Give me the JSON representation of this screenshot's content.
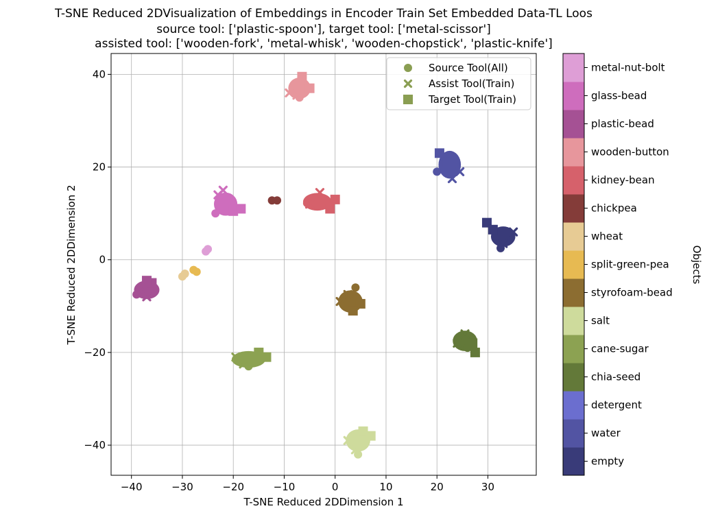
{
  "chart_data": {
    "type": "scatter",
    "title_lines": [
      "T-SNE Reduced 2DVisualization of Embeddings in Encoder Train Set Embedded Data-TL Loos",
      "source tool: ['plastic-spoon'], target tool: ['metal-scissor']",
      "assisted tool: ['wooden-fork', 'metal-whisk', 'wooden-chopstick', 'plastic-knife']"
    ],
    "xlabel": "T-SNE Reduced 2DDimension 1",
    "ylabel": "T-SNE Reduced 2DDimension 2",
    "xlim": [
      -44,
      39.5
    ],
    "ylim": [
      -46.5,
      44.5
    ],
    "xticks": [
      -40,
      -30,
      -20,
      -10,
      0,
      10,
      20,
      30
    ],
    "yticks": [
      -40,
      -20,
      0,
      20,
      40
    ],
    "grid": true,
    "legend": {
      "placement": "top-right",
      "color": "#8a9e52",
      "entries": [
        {
          "label": "Source Tool(All)",
          "marker": "circle"
        },
        {
          "label": "Assist Tool(Train)",
          "marker": "x"
        },
        {
          "label": "Target Tool(Train)",
          "marker": "square"
        }
      ]
    },
    "colorbar": {
      "label": "Objects",
      "categories": [
        {
          "name": "empty",
          "color": "#393b79"
        },
        {
          "name": "water",
          "color": "#5254a3"
        },
        {
          "name": "detergent",
          "color": "#6b6ecf"
        },
        {
          "name": "chia-seed",
          "color": "#637939"
        },
        {
          "name": "cane-sugar",
          "color": "#8ca252"
        },
        {
          "name": "salt",
          "color": "#cedb9c"
        },
        {
          "name": "styrofoam-bead",
          "color": "#8c6d31"
        },
        {
          "name": "split-green-pea",
          "color": "#e7ba52"
        },
        {
          "name": "wheat",
          "color": "#e7cb94"
        },
        {
          "name": "chickpea",
          "color": "#843c39"
        },
        {
          "name": "kidney-bean",
          "color": "#d6616b"
        },
        {
          "name": "wooden-button",
          "color": "#e7969c"
        },
        {
          "name": "plastic-bead",
          "color": "#a55194"
        },
        {
          "name": "glass-bead",
          "color": "#ce6dbd"
        },
        {
          "name": "metal-nut-bolt",
          "color": "#de9ed6"
        }
      ]
    },
    "clusters": [
      {
        "category": "empty",
        "cx": 33,
        "cy": 5,
        "rx": 2.4,
        "ry": 2.2,
        "squares": [
          [
            29.8,
            8
          ],
          [
            31,
            6.5
          ]
        ],
        "crosses": [
          [
            35,
            6
          ],
          [
            33,
            3.5
          ]
        ],
        "circles": [
          [
            32.5,
            2.5
          ]
        ]
      },
      {
        "category": "water",
        "cx": 22.5,
        "cy": 20.5,
        "rx": 2.2,
        "ry": 3.0,
        "squares": [
          [
            20.5,
            23
          ],
          [
            22,
            21
          ]
        ],
        "crosses": [
          [
            24.5,
            19
          ],
          [
            23,
            17.5
          ]
        ],
        "circles": [
          [
            20,
            19
          ]
        ]
      },
      {
        "category": "chia-seed",
        "cx": 25.5,
        "cy": -17.5,
        "rx": 2.4,
        "ry": 2.2,
        "squares": [
          [
            27.5,
            -20
          ],
          [
            27,
            -18
          ]
        ],
        "crosses": [
          [
            24,
            -18
          ],
          [
            25.5,
            -16
          ]
        ],
        "circles": [
          [
            26,
            -19
          ]
        ]
      },
      {
        "category": "cane-sugar",
        "cx": -17,
        "cy": -21.5,
        "rx": 3.3,
        "ry": 1.8,
        "squares": [
          [
            -15,
            -20
          ],
          [
            -13.5,
            -21
          ]
        ],
        "crosses": [
          [
            -19.5,
            -21
          ],
          [
            -18,
            -22.5
          ]
        ],
        "circles": [
          [
            -17,
            -23
          ]
        ]
      },
      {
        "category": "salt",
        "cx": 4.5,
        "cy": -39,
        "rx": 2.4,
        "ry": 2.4,
        "squares": [
          [
            5.5,
            -37
          ],
          [
            7,
            -38
          ]
        ],
        "crosses": [
          [
            2.5,
            -39
          ],
          [
            4,
            -41
          ]
        ],
        "circles": [
          [
            4.5,
            -42
          ]
        ]
      },
      {
        "category": "styrofoam-bead",
        "cx": 3,
        "cy": -9,
        "rx": 2.4,
        "ry": 2.4,
        "squares": [
          [
            5,
            -9.5
          ],
          [
            3.5,
            -11
          ]
        ],
        "crosses": [
          [
            1,
            -9
          ],
          [
            2.5,
            -7.5
          ]
        ],
        "circles": [
          [
            4,
            -6
          ]
        ]
      },
      {
        "category": "split-green-pea",
        "cx": -27.5,
        "cy": -2.3,
        "rx": 0.8,
        "ry": 0.6,
        "squares": [],
        "crosses": [],
        "circles": [
          [
            -27.8,
            -2.2
          ],
          [
            -27.2,
            -2.6
          ]
        ]
      },
      {
        "category": "wheat",
        "cx": -29.7,
        "cy": -3.3,
        "rx": 0.9,
        "ry": 0.7,
        "squares": [],
        "crosses": [],
        "circles": [
          [
            -29.5,
            -3
          ],
          [
            -30,
            -3.6
          ]
        ]
      },
      {
        "category": "chickpea",
        "cx": -11.9,
        "cy": 12.8,
        "rx": 1.0,
        "ry": 0.5,
        "squares": [],
        "crosses": [],
        "circles": [
          [
            -12.4,
            12.8
          ],
          [
            -11.4,
            12.8
          ]
        ]
      },
      {
        "category": "kidney-bean",
        "cx": -3.5,
        "cy": 12.5,
        "rx": 2.8,
        "ry": 1.9,
        "squares": [
          [
            -1,
            11
          ],
          [
            0,
            13
          ]
        ],
        "crosses": [
          [
            -5,
            12
          ],
          [
            -3,
            14.5
          ]
        ],
        "circles": [
          [
            -5.5,
            12.2
          ]
        ]
      },
      {
        "category": "wooden-button",
        "cx": -7,
        "cy": 37,
        "rx": 2.2,
        "ry": 2.3,
        "squares": [
          [
            -6.5,
            39.5
          ],
          [
            -5,
            37
          ]
        ],
        "crosses": [
          [
            -9,
            36
          ],
          [
            -7.5,
            35.5
          ]
        ],
        "circles": [
          [
            -7,
            35
          ]
        ]
      },
      {
        "category": "plastic-bead",
        "cx": -37,
        "cy": -6.5,
        "rx": 2.5,
        "ry": 2.0,
        "squares": [
          [
            -36,
            -5
          ],
          [
            -37,
            -4.5
          ]
        ],
        "crosses": [
          [
            -38.5,
            -7
          ],
          [
            -37,
            -8
          ]
        ],
        "circles": [
          [
            -39,
            -7.5
          ]
        ]
      },
      {
        "category": "glass-bead",
        "cx": -21.5,
        "cy": 12,
        "rx": 2.3,
        "ry": 2.5,
        "squares": [
          [
            -20,
            10.5
          ],
          [
            -18.5,
            11
          ]
        ],
        "crosses": [
          [
            -23,
            14
          ],
          [
            -22,
            15
          ]
        ],
        "circles": [
          [
            -23.5,
            10
          ]
        ]
      },
      {
        "category": "metal-nut-bolt",
        "cx": -25.2,
        "cy": 2,
        "rx": 0.8,
        "ry": 0.7,
        "squares": [],
        "crosses": [],
        "circles": [
          [
            -25.4,
            1.8
          ],
          [
            -25,
            2.3
          ]
        ]
      }
    ]
  }
}
